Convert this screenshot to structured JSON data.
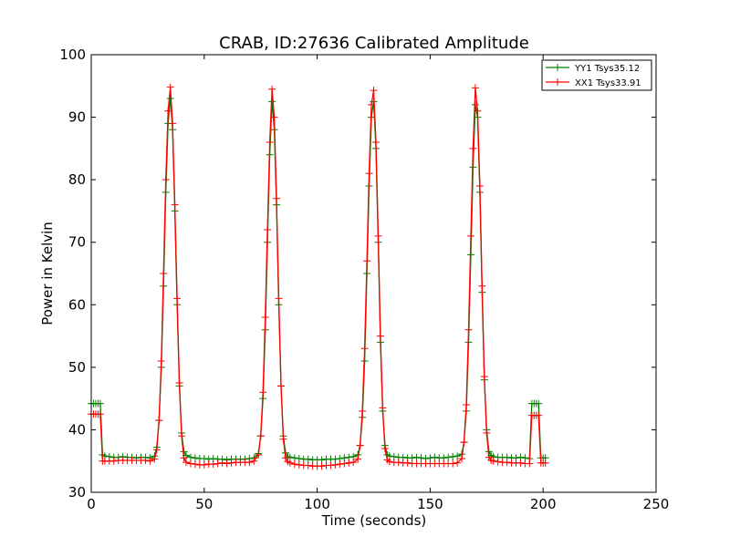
{
  "chart_data": {
    "type": "line",
    "title": "CRAB, ID:27636 Calibrated Amplitude",
    "xlabel": "Time (seconds)",
    "ylabel": "Power in Kelvin",
    "xlim": [
      0,
      250
    ],
    "ylim": [
      30,
      100
    ],
    "xticks": [
      "0",
      "50",
      "100",
      "150",
      "200",
      "250"
    ],
    "yticks": [
      "30",
      "40",
      "50",
      "60",
      "70",
      "80",
      "90",
      "100"
    ],
    "grid": false,
    "legend_position": "top-right",
    "marker": "plus",
    "series": [
      {
        "name": "YY1 Tsys35.12",
        "color": "#008000",
        "x": [
          0,
          1,
          2,
          3,
          4,
          5,
          6,
          8,
          10,
          12,
          14,
          16,
          18,
          20,
          22,
          24,
          26,
          28,
          29,
          30,
          31,
          32,
          33,
          34,
          35,
          36,
          37,
          38,
          39,
          40,
          41,
          42,
          44,
          46,
          48,
          50,
          52,
          54,
          56,
          58,
          60,
          62,
          64,
          66,
          68,
          70,
          72,
          74,
          75,
          76,
          77,
          78,
          79,
          80,
          81,
          82,
          83,
          84,
          85,
          86,
          87,
          88,
          90,
          92,
          94,
          96,
          98,
          100,
          102,
          104,
          106,
          108,
          110,
          112,
          114,
          116,
          118,
          119,
          120,
          121,
          122,
          123,
          124,
          125,
          126,
          127,
          128,
          129,
          130,
          131,
          132,
          134,
          136,
          138,
          140,
          142,
          144,
          146,
          148,
          150,
          152,
          154,
          156,
          158,
          160,
          162,
          164,
          165,
          166,
          167,
          168,
          169,
          170,
          171,
          172,
          173,
          174,
          175,
          176,
          177,
          178,
          180,
          182,
          184,
          186,
          188,
          190,
          192,
          194,
          195,
          196,
          197,
          198,
          199,
          200,
          201
        ],
        "values": [
          44.2,
          44.2,
          44.2,
          44.2,
          44.2,
          36.0,
          35.8,
          35.7,
          35.6,
          35.6,
          35.7,
          35.6,
          35.6,
          35.5,
          35.6,
          35.6,
          35.5,
          35.8,
          37.2,
          41.5,
          50.0,
          63.0,
          78.0,
          89.0,
          93.0,
          88.0,
          75.0,
          60.0,
          47.0,
          39.5,
          36.5,
          35.9,
          35.6,
          35.5,
          35.4,
          35.4,
          35.3,
          35.4,
          35.3,
          35.3,
          35.2,
          35.3,
          35.3,
          35.3,
          35.3,
          35.4,
          35.5,
          36.2,
          39.0,
          45.0,
          56.0,
          70.0,
          84.0,
          92.5,
          88.0,
          76.0,
          60.0,
          47.0,
          39.0,
          36.3,
          35.7,
          35.6,
          35.5,
          35.4,
          35.3,
          35.3,
          35.2,
          35.2,
          35.2,
          35.3,
          35.3,
          35.3,
          35.4,
          35.5,
          35.6,
          35.7,
          36.0,
          37.5,
          42.0,
          51.0,
          65.0,
          79.0,
          90.0,
          92.5,
          85.0,
          70.0,
          54.0,
          43.0,
          37.5,
          36.0,
          35.8,
          35.7,
          35.6,
          35.6,
          35.5,
          35.5,
          35.6,
          35.5,
          35.4,
          35.5,
          35.6,
          35.5,
          35.5,
          35.6,
          35.7,
          35.8,
          36.1,
          38.0,
          43.0,
          54.0,
          68.0,
          82.0,
          92.0,
          90.0,
          78.0,
          62.0,
          48.0,
          40.0,
          36.5,
          35.9,
          35.7,
          35.6,
          35.6,
          35.6,
          35.5,
          35.5,
          35.6,
          35.5,
          35.4,
          44.2,
          44.2,
          44.2,
          44.2,
          35.5,
          35.5,
          35.5
        ]
      },
      {
        "name": "XX1 Tsys33.91",
        "color": "#ff0000",
        "x": [
          0,
          1,
          2,
          3,
          4,
          5,
          6,
          8,
          10,
          12,
          14,
          16,
          18,
          20,
          22,
          24,
          26,
          28,
          29,
          30,
          31,
          32,
          33,
          34,
          35,
          36,
          37,
          38,
          39,
          40,
          41,
          42,
          44,
          46,
          48,
          50,
          52,
          54,
          56,
          58,
          60,
          62,
          64,
          66,
          68,
          70,
          72,
          74,
          75,
          76,
          77,
          78,
          79,
          80,
          81,
          82,
          83,
          84,
          85,
          86,
          87,
          88,
          90,
          92,
          94,
          96,
          98,
          100,
          102,
          104,
          106,
          108,
          110,
          112,
          114,
          116,
          118,
          119,
          120,
          121,
          122,
          123,
          124,
          125,
          126,
          127,
          128,
          129,
          130,
          131,
          132,
          134,
          136,
          138,
          140,
          142,
          144,
          146,
          148,
          150,
          152,
          154,
          156,
          158,
          160,
          162,
          164,
          165,
          166,
          167,
          168,
          169,
          170,
          171,
          172,
          173,
          174,
          175,
          176,
          177,
          178,
          180,
          182,
          184,
          186,
          188,
          190,
          192,
          194,
          195,
          196,
          197,
          198,
          199,
          200,
          201
        ],
        "values": [
          42.5,
          42.5,
          42.5,
          42.5,
          42.5,
          35.0,
          35.0,
          35.0,
          35.0,
          35.1,
          35.1,
          35.1,
          35.1,
          35.1,
          35.1,
          35.1,
          35.0,
          35.3,
          36.8,
          41.5,
          51.0,
          65.0,
          80.0,
          91.0,
          94.8,
          89.0,
          76.0,
          61.0,
          47.5,
          39.0,
          35.5,
          34.8,
          34.6,
          34.5,
          34.4,
          34.4,
          34.5,
          34.5,
          34.6,
          34.7,
          34.6,
          34.7,
          34.8,
          34.8,
          34.8,
          34.8,
          35.0,
          36.0,
          39.0,
          46.0,
          58.0,
          72.0,
          86.0,
          94.5,
          90.0,
          77.0,
          61.0,
          47.0,
          38.5,
          35.5,
          34.9,
          34.7,
          34.5,
          34.4,
          34.3,
          34.3,
          34.2,
          34.2,
          34.2,
          34.3,
          34.3,
          34.4,
          34.5,
          34.6,
          34.7,
          34.8,
          35.3,
          37.5,
          43.0,
          53.0,
          67.0,
          81.0,
          92.0,
          94.3,
          86.0,
          71.0,
          55.0,
          43.5,
          37.0,
          35.2,
          34.9,
          34.8,
          34.8,
          34.7,
          34.7,
          34.6,
          34.6,
          34.6,
          34.6,
          34.6,
          34.6,
          34.6,
          34.6,
          34.6,
          34.6,
          34.7,
          35.4,
          38.0,
          44.0,
          56.0,
          71.0,
          85.0,
          94.7,
          91.0,
          79.0,
          63.0,
          48.5,
          39.5,
          35.6,
          35.1,
          35.0,
          34.9,
          34.8,
          34.8,
          34.7,
          34.7,
          34.7,
          34.6,
          34.6,
          42.3,
          42.3,
          42.3,
          42.3,
          34.7,
          34.7,
          34.7
        ]
      }
    ]
  }
}
